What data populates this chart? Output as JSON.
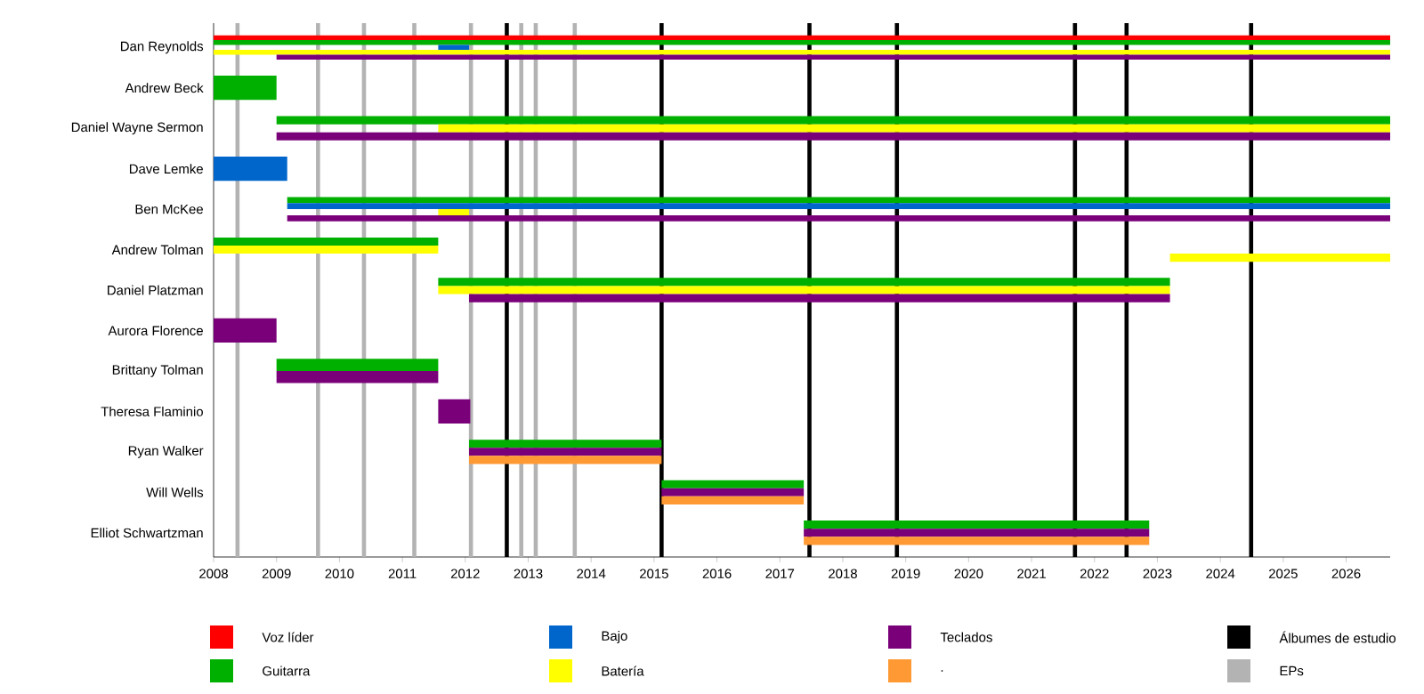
{
  "chart_data": {
    "type": "bar",
    "orientation": "horizontal",
    "categories": [
      "Dan Reynolds",
      "Andrew Beck",
      "Daniel Wayne Sermon",
      "Dave Lemke",
      "Ben McKee",
      "Andrew Tolman",
      "Daniel Platzman",
      "Aurora Florence",
      "Brittany Tolman",
      "Theresa Flaminio",
      "Ryan Walker",
      "Will Wells",
      "Elliot Schwartzman"
    ],
    "series": [
      {
        "name": "Voz líder",
        "color": "#ff0000",
        "base": [
          2008,
          null,
          null,
          null,
          null,
          null,
          null,
          null,
          null,
          null,
          null,
          null,
          null
        ],
        "values": [
          18.7,
          null,
          null,
          null,
          null,
          null,
          null,
          null,
          null,
          null,
          null,
          null,
          null
        ]
      },
      {
        "name": "Guitarra",
        "color": "#00b000",
        "base": [
          2008,
          2008,
          2009,
          null,
          2009.17,
          2008,
          2011.57,
          null,
          2009,
          null,
          2012.06,
          2015.12,
          2017.38
        ],
        "values": [
          18.7,
          1.0,
          17.7,
          null,
          17.53,
          3.57,
          11.63,
          null,
          2.57,
          null,
          3.06,
          2.26,
          5.49
        ]
      },
      {
        "name": "Bajo",
        "color": "#0066cc",
        "base": [
          2011.57,
          null,
          null,
          2008,
          2009.17,
          null,
          null,
          null,
          null,
          null,
          null,
          null,
          null
        ],
        "values": [
          0.49,
          null,
          null,
          1.17,
          17.53,
          null,
          null,
          null,
          null,
          null,
          null,
          null,
          null
        ]
      },
      {
        "name": "Batería",
        "color": "#ffff00",
        "base": [
          2008,
          null,
          2011.57,
          null,
          2011.57,
          2008,
          2011.57,
          null,
          null,
          null,
          null,
          null,
          null
        ],
        "values": [
          18.7,
          null,
          15.13,
          null,
          0.49,
          3.57,
          11.63,
          null,
          null,
          null,
          null,
          null,
          null
        ]
      },
      {
        "name": "Teclados",
        "color": "#7a007a",
        "base": [
          2009,
          null,
          2009,
          null,
          2009.17,
          null,
          2012.06,
          2008,
          2009,
          2011.57,
          2012.06,
          2015.12,
          2017.38
        ],
        "values": [
          17.7,
          null,
          17.7,
          null,
          17.53,
          null,
          11.14,
          1.0,
          2.57,
          0.51,
          3.06,
          2.26,
          5.49
        ]
      },
      {
        "name": ".",
        "color": "#ff9933",
        "base": [
          null,
          null,
          null,
          null,
          null,
          null,
          null,
          null,
          null,
          null,
          2012.06,
          2015.12,
          2017.38
        ],
        "values": [
          null,
          null,
          null,
          null,
          null,
          null,
          null,
          null,
          null,
          null,
          3.06,
          2.26,
          5.49
        ]
      },
      {
        "color": "#ffff00",
        "base": [
          null,
          null,
          null,
          null,
          null,
          2023.2,
          null,
          null,
          null,
          null,
          null,
          null,
          null
        ],
        "values": [
          null,
          null,
          null,
          null,
          null,
          3.5,
          null,
          null,
          null,
          null,
          null,
          null,
          null
        ]
      }
    ],
    "xlim": [
      2008,
      2026.7
    ],
    "xticks": [
      2008,
      2009,
      2010,
      2011,
      2012,
      2013,
      2014,
      2015,
      2016,
      2017,
      2018,
      2019,
      2020,
      2021,
      2022,
      2023,
      2024,
      2025,
      2026
    ],
    "ref_lines": [
      {
        "axis": "x",
        "value": 2012.66,
        "label": "Álbumes de estudio",
        "color": "#000000"
      },
      {
        "axis": "x",
        "value": 2015.12,
        "color": "#000000"
      },
      {
        "axis": "x",
        "value": 2017.47,
        "color": "#000000"
      },
      {
        "axis": "x",
        "value": 2018.86,
        "color": "#000000"
      },
      {
        "axis": "x",
        "value": 2021.69,
        "color": "#000000"
      },
      {
        "axis": "x",
        "value": 2022.51,
        "color": "#000000"
      },
      {
        "axis": "x",
        "value": 2024.49,
        "color": "#000000"
      },
      {
        "axis": "x",
        "value": 2008.38,
        "label": "EPs",
        "color": "#b3b3b3"
      },
      {
        "axis": "x",
        "value": 2009.66,
        "color": "#b3b3b3"
      },
      {
        "axis": "x",
        "value": 2010.39,
        "color": "#b3b3b3"
      },
      {
        "axis": "x",
        "value": 2011.19,
        "color": "#b3b3b3"
      },
      {
        "axis": "x",
        "value": 2012.09,
        "color": "#b3b3b3"
      },
      {
        "axis": "x",
        "value": 2012.89,
        "color": "#b3b3b3"
      },
      {
        "axis": "x",
        "value": 2013.12,
        "color": "#b3b3b3"
      },
      {
        "axis": "x",
        "value": 2013.74,
        "color": "#b3b3b3"
      }
    ],
    "legend": "bottom"
  }
}
